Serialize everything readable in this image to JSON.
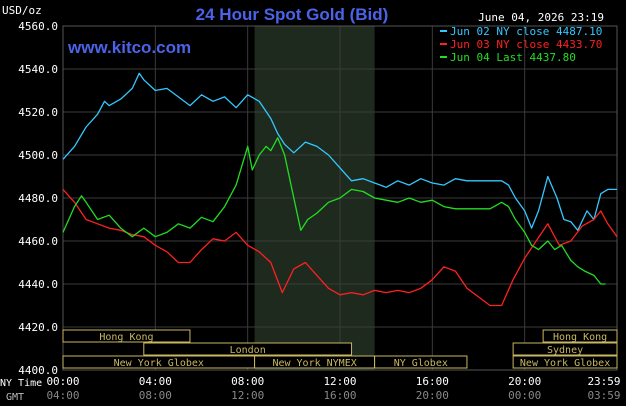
{
  "header": {
    "unit": "USD/oz",
    "title": "24 Hour Spot Gold (Bid)",
    "timestamp": "June 04, 2026 23:19",
    "website": "www.kitco.com"
  },
  "legend": [
    {
      "label": "Jun 02 NY close 4487.10",
      "color": "#33c8ff"
    },
    {
      "label": "Jun 03 NY close 4433.70",
      "color": "#ff2020"
    },
    {
      "label": "Jun 04 Last 4437.80",
      "color": "#22dd22"
    }
  ],
  "time_axis": {
    "ny_label": "NY Time",
    "gmt_label": "GMT",
    "ny_ticks": [
      "00:00",
      "04:00",
      "08:00",
      "12:00",
      "16:00",
      "20:00",
      "23:59"
    ],
    "gmt_ticks": [
      "04:00",
      "08:00",
      "12:00",
      "16:00",
      "20:00",
      "00:00",
      "03:59"
    ]
  },
  "sessions": [
    {
      "label": "Hong Kong",
      "row": 0,
      "start": 0,
      "end": 5.5
    },
    {
      "label": "Hong Kong",
      "row": 0,
      "start": 20.8,
      "end": 24
    },
    {
      "label": "London",
      "row": 1,
      "start": 3.5,
      "end": 12.5
    },
    {
      "label": "Sydney",
      "row": 1,
      "start": 19.5,
      "end": 24
    },
    {
      "label": "New York Globex",
      "row": 2,
      "start": 0,
      "end": 8.3
    },
    {
      "label": "New York NYMEX",
      "row": 2,
      "start": 8.3,
      "end": 13.5
    },
    {
      "label": "NY Globex",
      "row": 2,
      "start": 13.5,
      "end": 17.5
    },
    {
      "label": "New York Globex",
      "row": 2,
      "start": 19.5,
      "end": 24
    }
  ],
  "chart_data": {
    "type": "line",
    "ylim": [
      4400,
      4560
    ],
    "y_ticks": [
      "4560.0",
      "4540.0",
      "4520.0",
      "4500.0",
      "4480.0",
      "4460.0",
      "4440.0",
      "4420.0",
      "4400.0"
    ],
    "xlim": [
      0,
      24
    ],
    "shaded_hours": [
      8.3,
      13.5
    ],
    "series": [
      {
        "color": "#33c8ff",
        "x": [
          0,
          0.5,
          1,
          1.5,
          1.8,
          2,
          2.5,
          3,
          3.3,
          3.5,
          4,
          4.5,
          5,
          5.5,
          6,
          6.5,
          7,
          7.5,
          8,
          8.5,
          9,
          9.3,
          9.6,
          10,
          10.5,
          11,
          11.5,
          12,
          12.5,
          13,
          13.5,
          14,
          14.5,
          15,
          15.5,
          16,
          16.5,
          17,
          17.5,
          18,
          18.5,
          19,
          19.3,
          19.6,
          20,
          20.3,
          20.6,
          21,
          21.4,
          21.7,
          22,
          22.3,
          22.7,
          23,
          23.3,
          23.6,
          24
        ],
        "y": [
          4498,
          4504,
          4513,
          4519,
          4525,
          4523,
          4526,
          4531,
          4538,
          4535,
          4530,
          4531,
          4527,
          4523,
          4528,
          4525,
          4527,
          4522,
          4528,
          4525,
          4517,
          4510,
          4505,
          4501,
          4506,
          4504,
          4500,
          4494,
          4488,
          4489,
          4487,
          4485,
          4488,
          4486,
          4489,
          4487,
          4486,
          4489,
          4488,
          4488,
          4488,
          4488,
          4486,
          4480,
          4474,
          4466,
          4474,
          4490,
          4480,
          4470,
          4469,
          4465,
          4474,
          4470,
          4482,
          4484,
          4484
        ]
      },
      {
        "color": "#ff2020",
        "x": [
          0,
          0.5,
          1,
          1.5,
          2,
          2.5,
          3,
          3.5,
          4,
          4.5,
          5,
          5.5,
          6,
          6.5,
          7,
          7.5,
          8,
          8.5,
          9,
          9.5,
          10,
          10.5,
          11,
          11.5,
          12,
          12.5,
          13,
          13.5,
          14,
          14.5,
          15,
          15.5,
          16,
          16.5,
          17,
          17.5,
          18,
          18.5,
          19,
          19.5,
          20,
          20.5,
          21,
          21.5,
          22,
          22.5,
          23,
          23.3,
          23.6,
          24
        ],
        "y": [
          4484,
          4478,
          4470,
          4468,
          4466,
          4465,
          4463,
          4462,
          4458,
          4455,
          4450,
          4450,
          4456,
          4461,
          4460,
          4464,
          4458,
          4455,
          4450,
          4436,
          4447,
          4450,
          4444,
          4438,
          4435,
          4436,
          4435,
          4437,
          4436,
          4437,
          4436,
          4438,
          4442,
          4448,
          4446,
          4438,
          4434,
          4430,
          4430,
          4442,
          4452,
          4460,
          4468,
          4458,
          4460,
          4467,
          4470,
          4474,
          4468,
          4462
        ]
      },
      {
        "color": "#22dd22",
        "x": [
          0,
          0.5,
          0.8,
          1,
          1.5,
          2,
          2.5,
          3,
          3.5,
          4,
          4.5,
          5,
          5.5,
          6,
          6.5,
          7,
          7.5,
          8,
          8.2,
          8.5,
          8.8,
          9,
          9.3,
          9.6,
          10,
          10.3,
          10.6,
          11,
          11.5,
          12,
          12.5,
          13,
          13.5,
          14,
          14.5,
          15,
          15.5,
          16,
          16.5,
          17,
          17.5,
          18,
          18.5,
          19,
          19.3,
          19.6,
          20,
          20.3,
          20.6,
          21,
          21.3,
          21.6,
          22,
          22.3,
          22.6,
          23,
          23.3,
          23.5
        ],
        "y": [
          4464,
          4476,
          4481,
          4478,
          4470,
          4472,
          4466,
          4462,
          4466,
          4462,
          4464,
          4468,
          4466,
          4471,
          4469,
          4476,
          4486,
          4504,
          4493,
          4500,
          4504,
          4502,
          4508,
          4500,
          4480,
          4465,
          4470,
          4473,
          4478,
          4480,
          4484,
          4483,
          4480,
          4479,
          4478,
          4480,
          4478,
          4479,
          4476,
          4475,
          4475,
          4475,
          4475,
          4478,
          4476,
          4470,
          4464,
          4458,
          4456,
          4460,
          4456,
          4458,
          4451,
          4448,
          4446,
          4444,
          4440,
          4440
        ]
      }
    ]
  }
}
